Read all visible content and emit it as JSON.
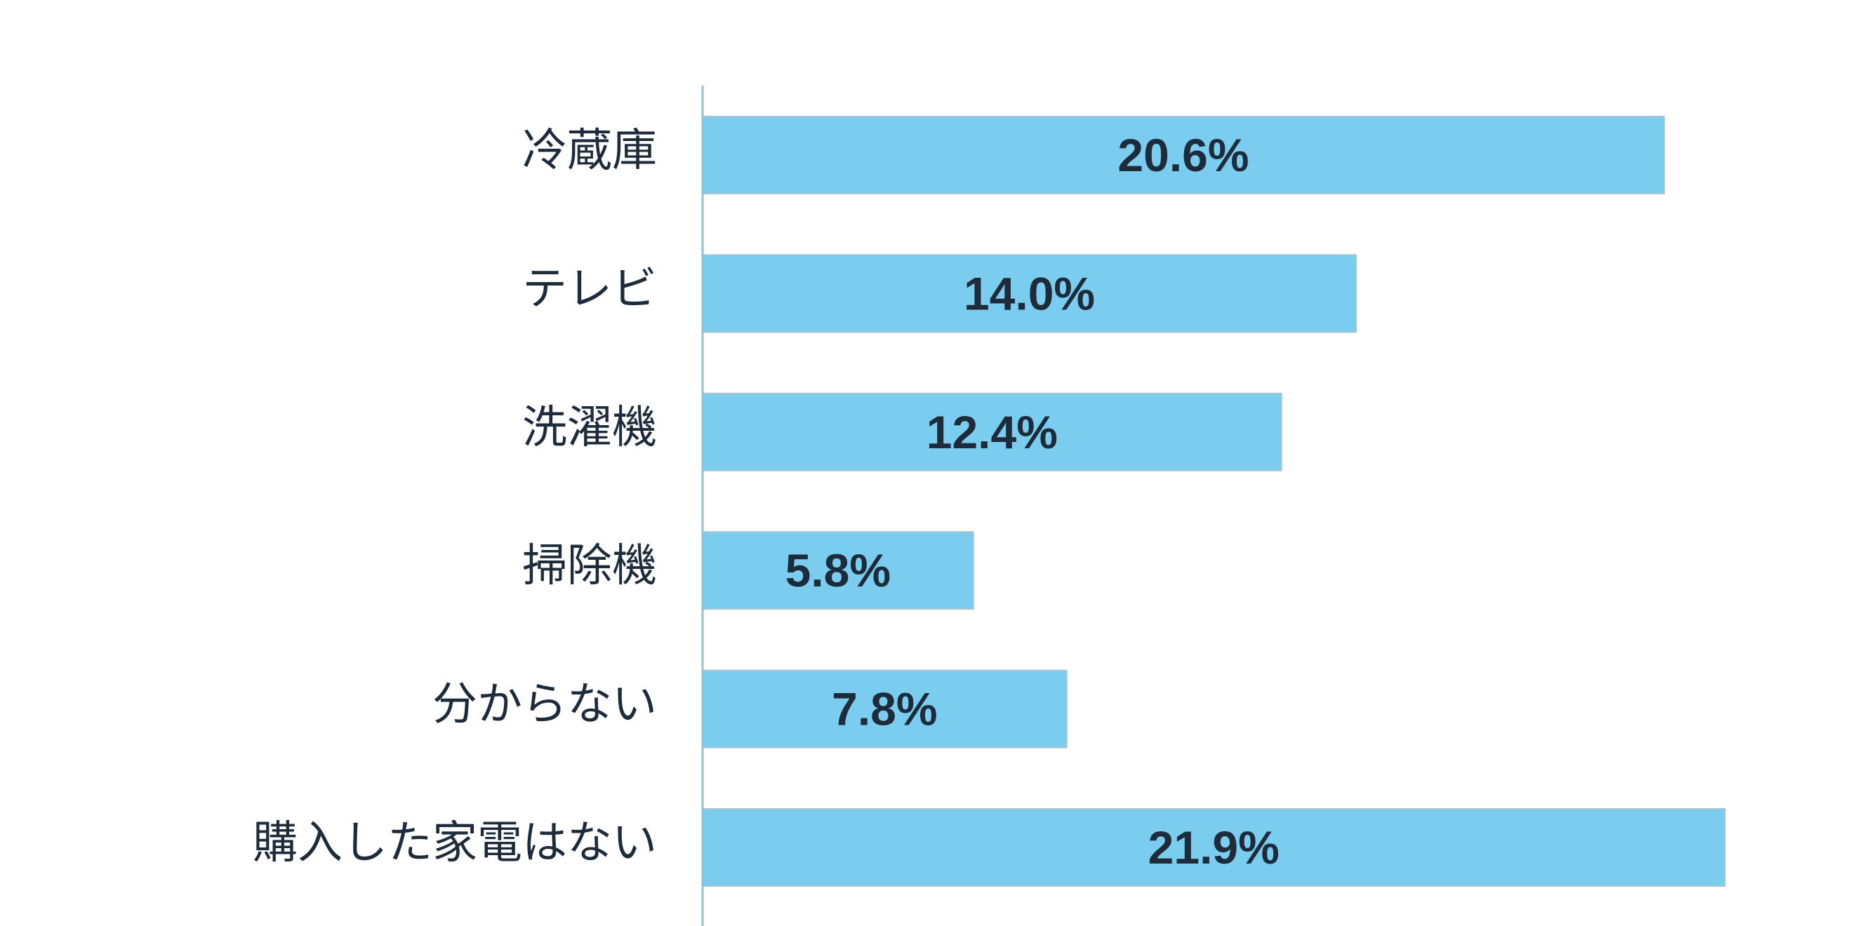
{
  "chart_data": {
    "type": "bar",
    "orientation": "horizontal",
    "categories": [
      "冷蔵庫",
      "テレビ",
      "洗濯機",
      "掃除機",
      "分からない",
      "購入した家電はない"
    ],
    "values": [
      20.6,
      14.0,
      12.4,
      5.8,
      7.8,
      21.9
    ],
    "value_labels": [
      "20.6%",
      "14.0%",
      "12.4%",
      "5.8%",
      "7.8%",
      "21.9%"
    ],
    "title": "",
    "xlabel": "",
    "ylabel": "",
    "xlim": [
      0,
      25
    ],
    "grid": false,
    "legend": "none",
    "colors": {
      "bar": "#7acdee",
      "bar_border": "#a9c3cf",
      "axis": "#8fc1d8",
      "text": "#1d2b3a"
    }
  }
}
